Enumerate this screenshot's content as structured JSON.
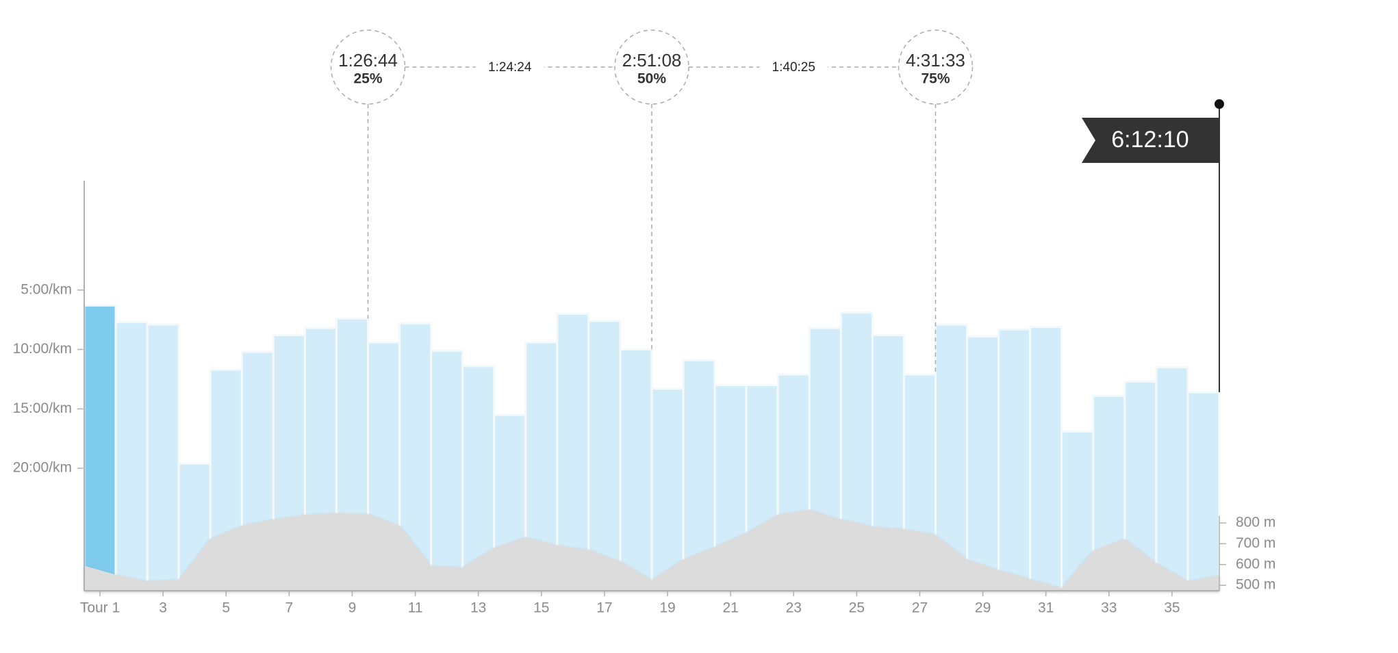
{
  "chart_data": {
    "type": "bar",
    "categories": [
      "Tour 1",
      null,
      "3",
      null,
      "5",
      null,
      "7",
      null,
      "9",
      null,
      "11",
      null,
      "13",
      null,
      "15",
      null,
      "17",
      null,
      "19",
      null,
      "21",
      null,
      "23",
      null,
      "25",
      null,
      "27",
      null,
      "29",
      null,
      "31",
      null,
      "33",
      null,
      "35",
      null
    ],
    "values": [
      6.3,
      7.7,
      7.9,
      19.6,
      11.7,
      10.2,
      8.8,
      8.2,
      7.4,
      9.4,
      7.8,
      10.1,
      11.4,
      15.5,
      9.4,
      7.0,
      7.6,
      10.0,
      13.3,
      10.9,
      13.0,
      13.0,
      12.1,
      8.2,
      6.9,
      8.8,
      12.1,
      7.9,
      8.9,
      8.3,
      8.1,
      16.9,
      13.9,
      12.7,
      11.5,
      13.6
    ],
    "colors": [
      "#7fcbee",
      "#d3ecf9",
      "#d3ecf9",
      "#d3ecf9",
      "#d3ecf9",
      "#d3ecf9",
      "#d3ecf9",
      "#d3ecf9",
      "#d3ecf9",
      "#d3ecf9",
      "#d3ecf9",
      "#d3ecf9",
      "#d3ecf9",
      "#d3ecf9",
      "#d3ecf9",
      "#d3ecf9",
      "#d3ecf9",
      "#d3ecf9",
      "#d3ecf9",
      "#d3ecf9",
      "#d3ecf9",
      "#d3ecf9",
      "#d3ecf9",
      "#d3ecf9",
      "#d3ecf9",
      "#d3ecf9",
      "#d3ecf9",
      "#d3ecf9",
      "#d3ecf9",
      "#d3ecf9",
      "#d3ecf9",
      "#d3ecf9",
      "#d3ecf9",
      "#d3ecf9",
      "#d3ecf9",
      "#d3ecf9"
    ],
    "ylim": [
      30.3,
      -4.2
    ],
    "yticks": [
      {
        "value": 5,
        "label": "5:00/km"
      },
      {
        "value": 10,
        "label": "10:00/km"
      },
      {
        "value": 15,
        "label": "15:00/km"
      },
      {
        "value": 20,
        "label": "20:00/km"
      }
    ],
    "elevation": {
      "axis": "y2",
      "color": "#dcdcdc",
      "values": [
        594,
        551,
        521,
        526,
        723,
        787,
        817,
        839,
        847,
        843,
        787,
        594,
        586,
        680,
        731,
        693,
        671,
        616,
        526,
        624,
        684,
        753,
        839,
        864,
        817,
        783,
        770,
        744,
        624,
        573,
        530,
        487,
        667,
        723,
        607,
        521,
        547
      ]
    },
    "y2lim": [
      474,
      2446
    ],
    "y2ticks": [
      {
        "value": 500,
        "label": "500 m"
      },
      {
        "value": 600,
        "label": "600 m"
      },
      {
        "value": 700,
        "label": "700 m"
      },
      {
        "value": 800,
        "label": "800 m"
      }
    ],
    "splits": {
      "times": [
        "1:26:44",
        "2:51:08",
        "4:31:33"
      ],
      "values": [
        25,
        50,
        75
      ],
      "value_labels": [
        "25%",
        "50%",
        "75%"
      ]
    },
    "intervals": [
      "1:24:24",
      "1:40:25"
    ],
    "finish": "6:12:10"
  }
}
